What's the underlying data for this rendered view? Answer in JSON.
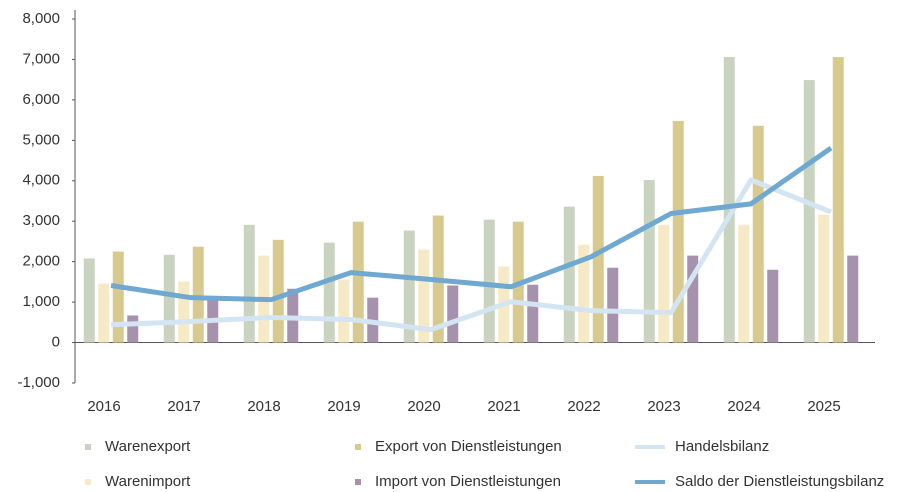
{
  "chart_data": {
    "type": "bar",
    "categories": [
      "2016",
      "2017",
      "2018",
      "2019",
      "2020",
      "2021",
      "2022",
      "2023",
      "2024",
      "2025"
    ],
    "series": [
      {
        "name": "Warenexport",
        "type": "bar",
        "color": "#c9d3c0",
        "values": [
          2080,
          2170,
          2910,
          2470,
          2770,
          3040,
          3360,
          4020,
          7060,
          6490
        ]
      },
      {
        "name": "Warenimport",
        "type": "bar",
        "color": "#f6eac6",
        "values": [
          1460,
          1510,
          2150,
          1560,
          2300,
          1880,
          2420,
          2910,
          2910,
          3160
        ]
      },
      {
        "name": "Export von Dienstleistungen",
        "type": "bar",
        "color": "#d8ca8e",
        "values": [
          2250,
          2370,
          2540,
          2990,
          3140,
          2990,
          4120,
          5480,
          5360,
          7060
        ]
      },
      {
        "name": "Import von Dienstleistungen",
        "type": "bar",
        "color": "#a792ae",
        "values": [
          670,
          1060,
          1330,
          1110,
          1410,
          1430,
          1850,
          2150,
          1800,
          2150
        ]
      },
      {
        "name": "Handelsbilanz",
        "type": "line",
        "color": "#d3e5f2",
        "values": [
          440,
          520,
          620,
          570,
          320,
          1010,
          790,
          740,
          4020,
          3230
        ]
      },
      {
        "name": "Saldo der Dienstleistungsbilanz",
        "type": "line",
        "color": "#6fa8d0",
        "values": [
          1410,
          1110,
          1060,
          1730,
          1560,
          1380,
          2120,
          3190,
          3430,
          4810
        ]
      }
    ],
    "ylim": [
      -1000,
      8000
    ],
    "yticks": [
      {
        "value": -1000,
        "label": "-1,000"
      },
      0,
      {
        "value": 1000,
        "label": "1,000"
      },
      {
        "value": 2000,
        "label": "2,000"
      },
      {
        "value": 3000,
        "label": "3,000"
      },
      {
        "value": 4000,
        "label": "4,000"
      },
      {
        "value": 5000,
        "label": "5,000"
      },
      {
        "value": 6000,
        "label": "6,000"
      },
      {
        "value": 7000,
        "label": "7,000"
      },
      {
        "value": 8000,
        "label": "8,000"
      }
    ],
    "grid": false
  }
}
